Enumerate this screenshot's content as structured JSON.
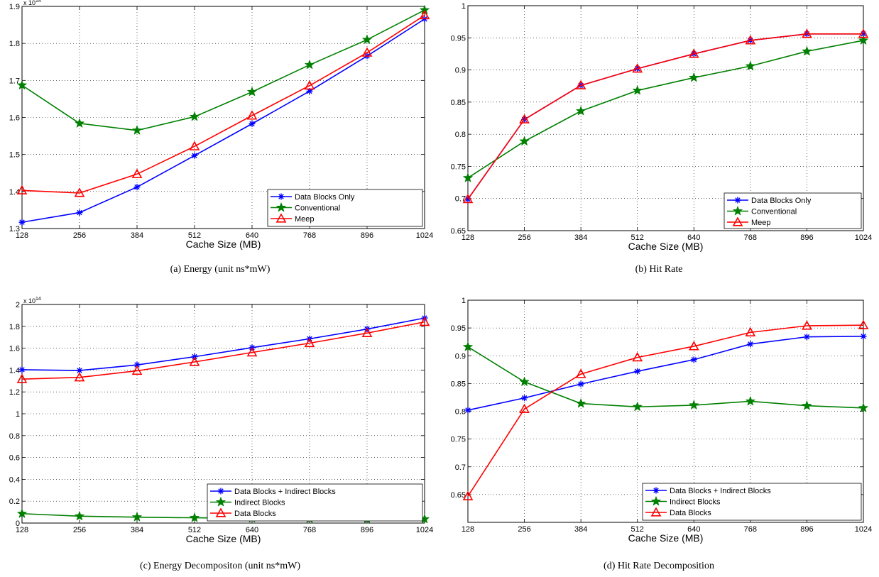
{
  "captions": {
    "a": "(a)  Energy (unit ns*mW)",
    "b": "(b)  Hit Rate",
    "c": "(c)  Energy Decompositon (unit ns*mW)",
    "d": "(d)  Hit Rate Decomposition"
  },
  "colors": {
    "blue": "#0000ff",
    "green": "#008000",
    "red": "#ff0000"
  },
  "chart_data": [
    {
      "type": "line",
      "xlabel": "Cache Size (MB)",
      "ylabel": "",
      "exponent_label": "x 10",
      "exponent_power": "14",
      "x": [
        128,
        256,
        384,
        512,
        640,
        768,
        896,
        1024
      ],
      "xticks": [
        "128",
        "256",
        "384",
        "512",
        "640",
        "768",
        "896",
        "1024"
      ],
      "ylim": [
        1.3,
        1.9
      ],
      "yticks": [
        "1.3",
        "1.4",
        "1.5",
        "1.6",
        "1.7",
        "1.8",
        "1.9"
      ],
      "ytick_values": [
        1.3,
        1.4,
        1.5,
        1.6,
        1.7,
        1.8,
        1.9
      ],
      "grid": true,
      "legend_position": "bottom-right",
      "series": [
        {
          "name": "Data Blocks Only",
          "color": "#0000ff",
          "marker": "asterisk",
          "values": [
            1.317,
            1.343,
            1.412,
            1.497,
            1.583,
            1.671,
            1.766,
            1.866
          ]
        },
        {
          "name": "Conventional",
          "color": "#008000",
          "marker": "star",
          "values": [
            1.687,
            1.584,
            1.565,
            1.602,
            1.669,
            1.742,
            1.81,
            1.89
          ]
        },
        {
          "name": "Meep",
          "color": "#ff0000",
          "marker": "triangle",
          "values": [
            1.403,
            1.396,
            1.447,
            1.522,
            1.605,
            1.686,
            1.775,
            1.876
          ]
        }
      ]
    },
    {
      "type": "line",
      "xlabel": "Cache Size (MB)",
      "ylabel": "",
      "x": [
        128,
        256,
        384,
        512,
        640,
        768,
        896,
        1024
      ],
      "xticks": [
        "128",
        "256",
        "384",
        "512",
        "640",
        "768",
        "896",
        "1024"
      ],
      "ylim": [
        0.65,
        1
      ],
      "yticks": [
        "0.65",
        "0.7",
        "0.75",
        "0.8",
        "0.85",
        "0.9",
        "0.95",
        "1"
      ],
      "ytick_values": [
        0.65,
        0.7,
        0.75,
        0.8,
        0.85,
        0.9,
        0.95,
        1
      ],
      "grid": true,
      "legend_position": "bottom-right",
      "series": [
        {
          "name": "Data Blocks Only",
          "color": "#0000ff",
          "marker": "asterisk",
          "values": [
            0.699,
            0.823,
            0.876,
            0.902,
            0.925,
            0.946,
            0.956,
            0.956
          ]
        },
        {
          "name": "Conventional",
          "color": "#008000",
          "marker": "star",
          "values": [
            0.732,
            0.789,
            0.836,
            0.868,
            0.888,
            0.906,
            0.929,
            0.946
          ]
        },
        {
          "name": "Meep",
          "color": "#ff0000",
          "marker": "triangle",
          "values": [
            0.699,
            0.823,
            0.876,
            0.902,
            0.925,
            0.946,
            0.956,
            0.956
          ]
        }
      ]
    },
    {
      "type": "line",
      "xlabel": "Cache Size (MB)",
      "ylabel": "",
      "exponent_label": "x 10",
      "exponent_power": "14",
      "x": [
        128,
        256,
        384,
        512,
        640,
        768,
        896,
        1024
      ],
      "xticks": [
        "128",
        "256",
        "384",
        "512",
        "640",
        "768",
        "896",
        "1024"
      ],
      "ylim": [
        0,
        2
      ],
      "yticks": [
        "0",
        "0.2",
        "0.4",
        "0.6",
        "0.8",
        "1",
        "1.2",
        "1.4",
        "1.6",
        "1.8",
        "2"
      ],
      "ytick_values": [
        0,
        0.2,
        0.4,
        0.6,
        0.8,
        1,
        1.2,
        1.4,
        1.6,
        1.8,
        2
      ],
      "grid": true,
      "legend_position": "bottom-right",
      "series": [
        {
          "name": "Data Blocks + Indirect Blocks",
          "color": "#0000ff",
          "marker": "asterisk",
          "values": [
            1.403,
            1.396,
            1.447,
            1.522,
            1.605,
            1.686,
            1.775,
            1.876
          ]
        },
        {
          "name": "Indirect Blocks",
          "color": "#008000",
          "marker": "star",
          "values": [
            0.086,
            0.063,
            0.054,
            0.048,
            0.044,
            0.04,
            0.037,
            0.036
          ]
        },
        {
          "name": "Data Blocks",
          "color": "#ff0000",
          "marker": "triangle",
          "values": [
            1.317,
            1.333,
            1.393,
            1.474,
            1.561,
            1.646,
            1.738,
            1.84
          ]
        }
      ]
    },
    {
      "type": "line",
      "xlabel": "Cache Size (MB)",
      "ylabel": "",
      "x": [
        128,
        256,
        384,
        512,
        640,
        768,
        896,
        1024
      ],
      "xticks": [
        "128",
        "256",
        "384",
        "512",
        "640",
        "768",
        "896",
        "1024"
      ],
      "ylim": [
        0.6,
        1
      ],
      "yticks": [
        "",
        "0.65",
        "0.7",
        "0.75",
        "0.8",
        "0.85",
        "0.9",
        "0.95",
        "1"
      ],
      "ytick_values": [
        0.6,
        0.65,
        0.7,
        0.75,
        0.8,
        0.85,
        0.9,
        0.95,
        1
      ],
      "grid": true,
      "legend_position": "bottom-right",
      "series": [
        {
          "name": "Data Blocks + Indirect Blocks",
          "color": "#0000ff",
          "marker": "asterisk",
          "values": [
            0.802,
            0.824,
            0.849,
            0.872,
            0.893,
            0.921,
            0.934,
            0.935
          ]
        },
        {
          "name": "Indirect Blocks",
          "color": "#008000",
          "marker": "star",
          "values": [
            0.916,
            0.853,
            0.814,
            0.808,
            0.811,
            0.818,
            0.81,
            0.806
          ]
        },
        {
          "name": "Data Blocks",
          "color": "#ff0000",
          "marker": "triangle",
          "values": [
            0.647,
            0.804,
            0.867,
            0.897,
            0.917,
            0.942,
            0.954,
            0.955
          ]
        }
      ]
    }
  ]
}
